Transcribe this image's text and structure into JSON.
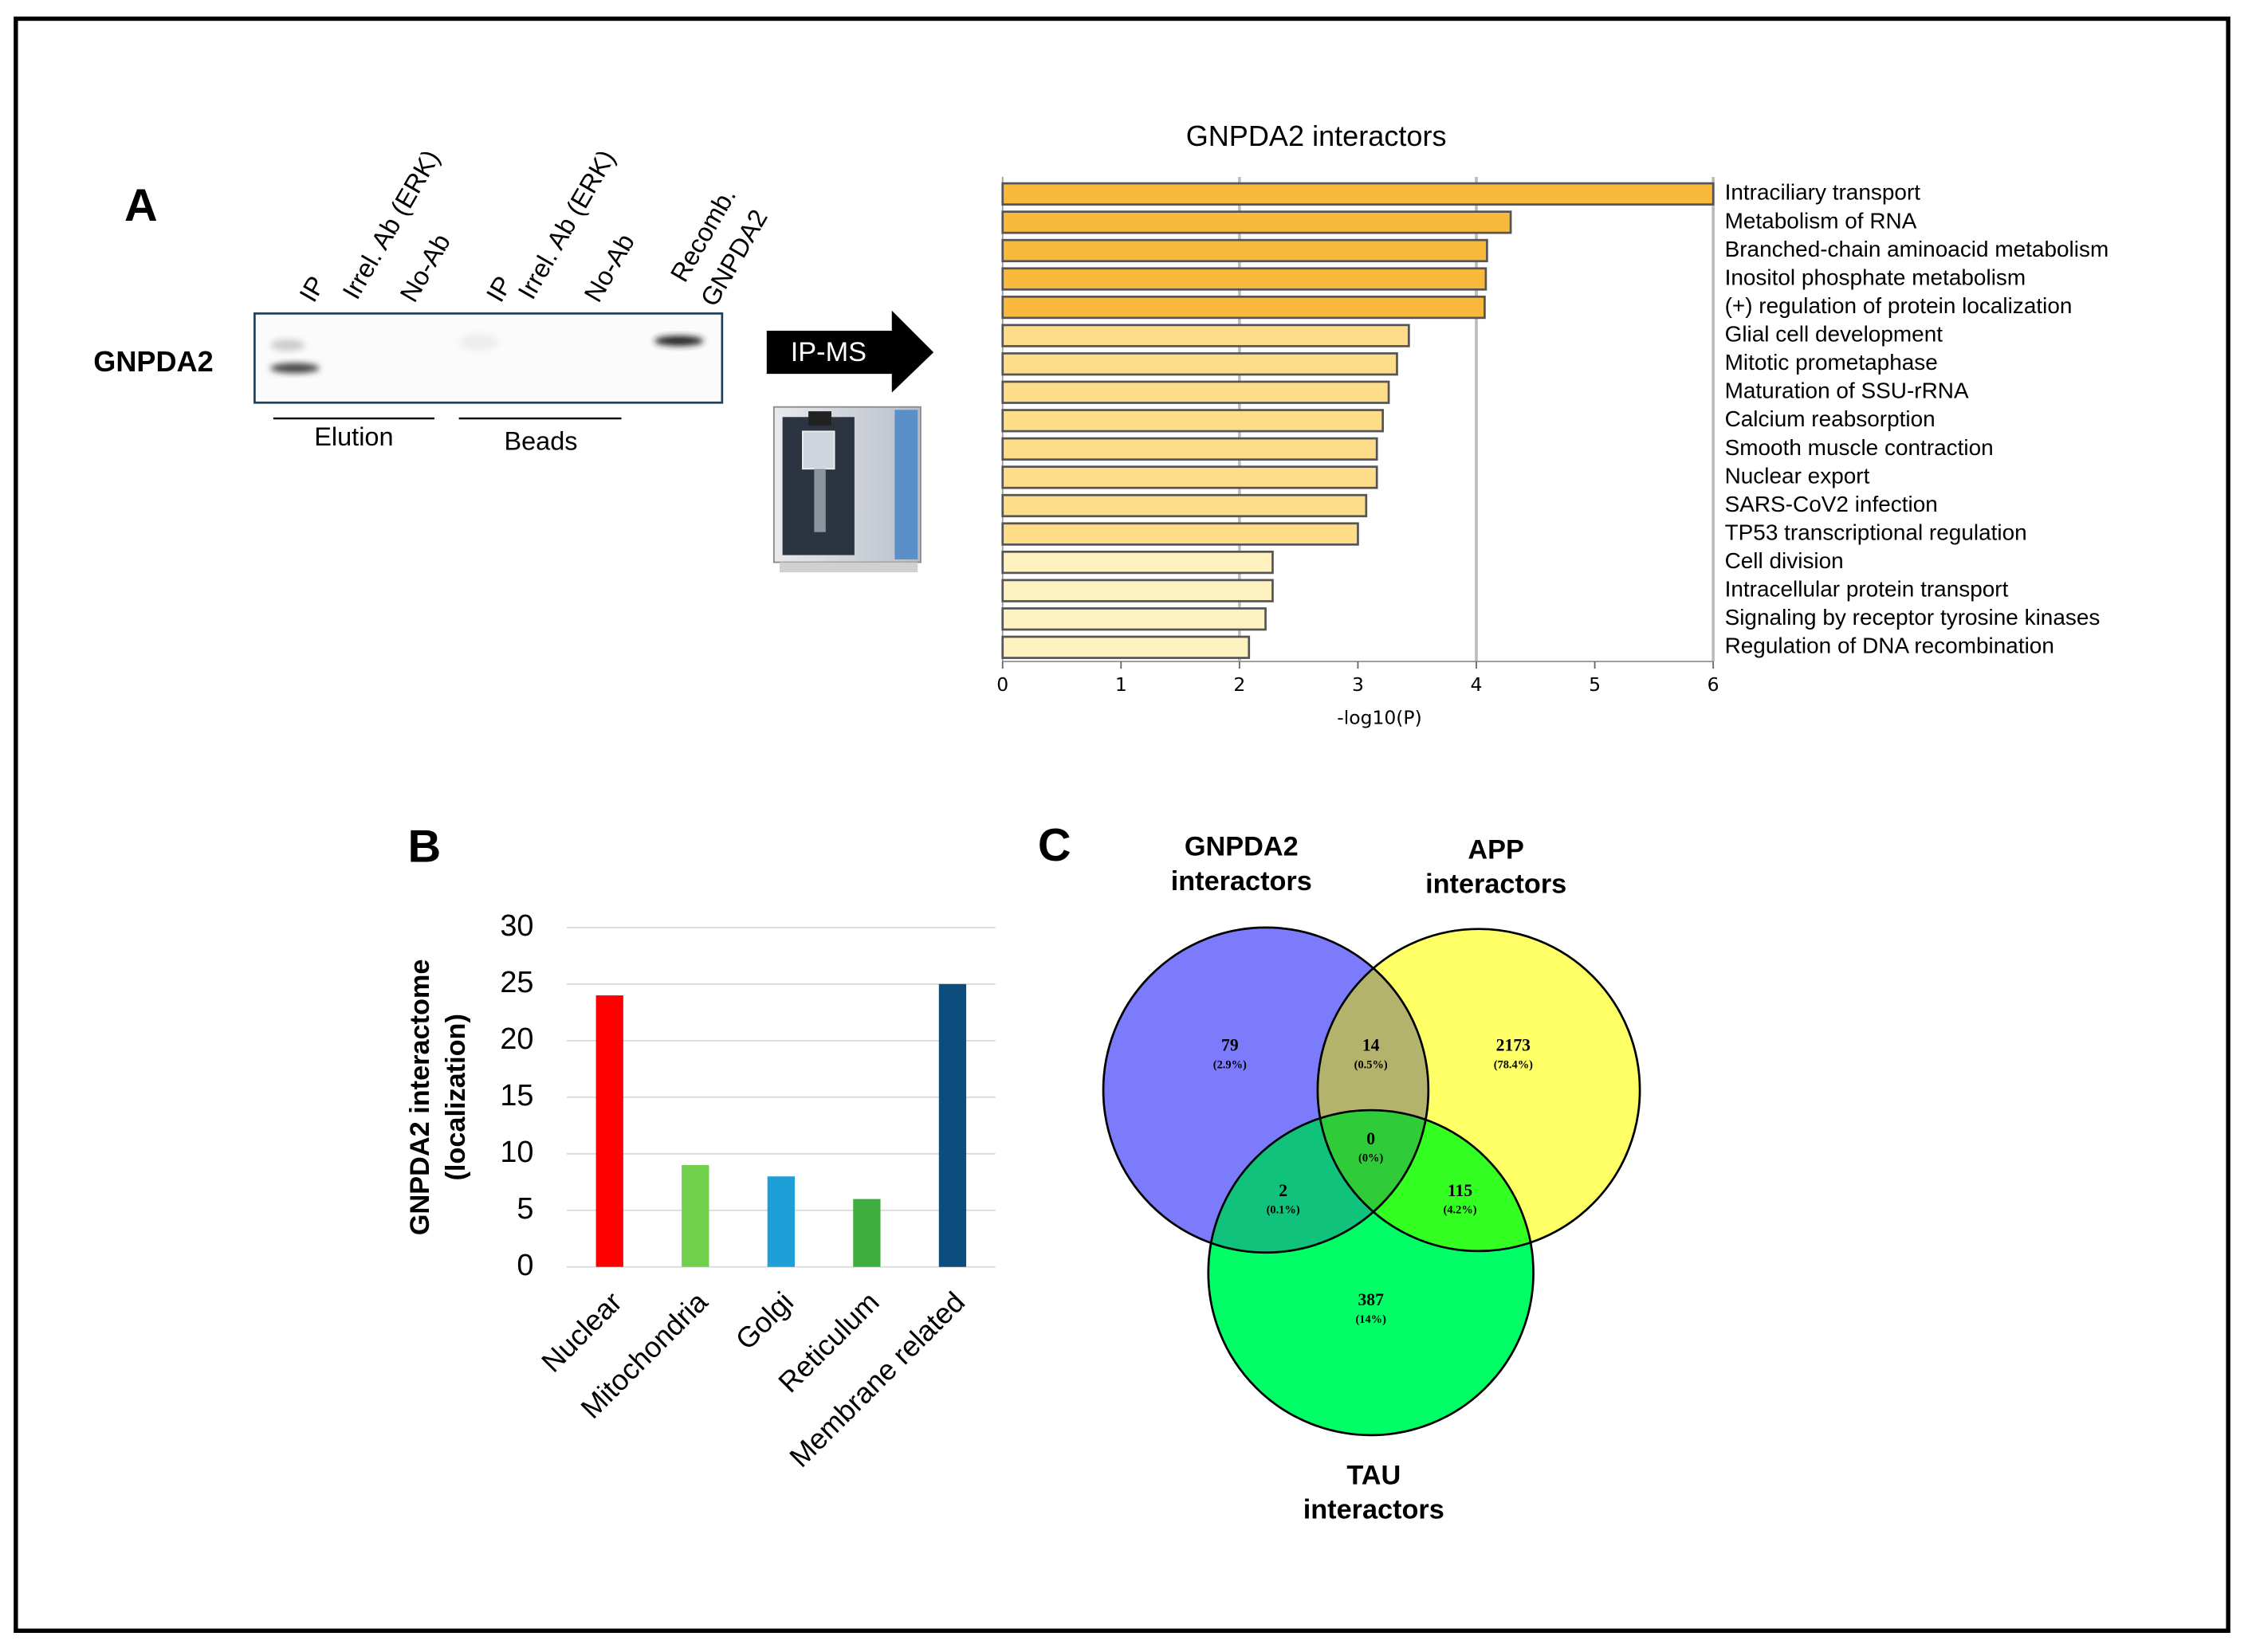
{
  "panel_labels": [
    "A",
    "B",
    "C"
  ],
  "blot": {
    "protein": "GNPDA2",
    "lanes": [
      "IP",
      "Irrel. Ab (ERK)",
      "No-Ab",
      "IP",
      "Irrel. Ab (ERK)",
      "No-Ab"
    ],
    "recomb_lines": [
      "Recomb.",
      "GNPDA2"
    ],
    "groups": [
      "Elution",
      "Beads"
    ],
    "arrow_label": "IP-MS"
  },
  "chart_data": [
    {
      "type": "hbar",
      "title": "GNPDA2 interactors",
      "xlabel": "-log10(P)",
      "categories": [
        "Intraciliary transport",
        "Metabolism of RNA",
        "Branched-chain aminoacid metabolism",
        "Inositol phosphate metabolism",
        "(+) regulation of protein localization",
        "Glial cell development",
        "Mitotic prometaphase",
        "Maturation of SSU-rRNA",
        "Calcium reabsorption",
        "Smooth muscle contraction",
        "Nuclear export",
        "SARS-CoV2 infection",
        "TP53 transcriptional regulation",
        "Cell division",
        "Intracellular protein transport",
        "Signaling by receptor tyrosine kinases",
        "Regulation of DNA recombination"
      ],
      "values": [
        6.0,
        4.29,
        4.09,
        4.08,
        4.07,
        3.43,
        3.33,
        3.26,
        3.21,
        3.16,
        3.16,
        3.07,
        3.0,
        2.28,
        2.28,
        2.22,
        2.08
      ],
      "colors": [
        "#f9b93c",
        "#f9b93c",
        "#f9b93c",
        "#f9b93c",
        "#f9b93c",
        "#fddc8a",
        "#fddc8a",
        "#fddc8a",
        "#fddc8a",
        "#fddc8a",
        "#fddc8a",
        "#fddc8a",
        "#fddc8a",
        "#fef3c0",
        "#fef3c0",
        "#fef3c0",
        "#fef3c0"
      ],
      "xlim": [
        0,
        6
      ],
      "xticks": [
        0,
        1,
        2,
        3,
        4,
        5,
        6
      ],
      "xgrid": [
        2,
        4,
        6
      ]
    },
    {
      "type": "bar",
      "ylabel_lines": [
        "GNPDA2 interactome",
        "(localization)"
      ],
      "categories": [
        "Nuclear",
        "Mitochondria",
        "Golgi",
        "Reticulum",
        "Membrane related"
      ],
      "values": [
        24,
        9,
        8,
        6,
        25
      ],
      "colors": [
        "#ff0000",
        "#70d04c",
        "#1f9fd8",
        "#3fae3f",
        "#0d4d7d"
      ],
      "ylim": [
        0,
        30
      ],
      "yticks": [
        0,
        5,
        10,
        15,
        20,
        25,
        30
      ],
      "grid": true
    },
    {
      "type": "venn",
      "sets": [
        {
          "name_lines": [
            "GNPDA2",
            "interactors"
          ],
          "color": "#7b7bfb"
        },
        {
          "name_lines": [
            "APP",
            "interactors"
          ],
          "color": "#ffff66"
        },
        {
          "name_lines": [
            "TAU",
            "interactors"
          ],
          "color": "#00ff66"
        }
      ],
      "regions": [
        "GNPDA2 only",
        "GNPDA2 & APP",
        "APP only",
        "all",
        "GNPDA2 & TAU",
        "APP & TAU",
        "TAU only"
      ],
      "values": [
        79,
        14,
        2173,
        0,
        2,
        115,
        387
      ],
      "percent_labels": [
        "(2.9%)",
        "(0.5%)",
        "(78.4%)",
        "(0%)",
        "(0.1%)",
        "(4.2%)",
        "(14%)"
      ]
    }
  ]
}
